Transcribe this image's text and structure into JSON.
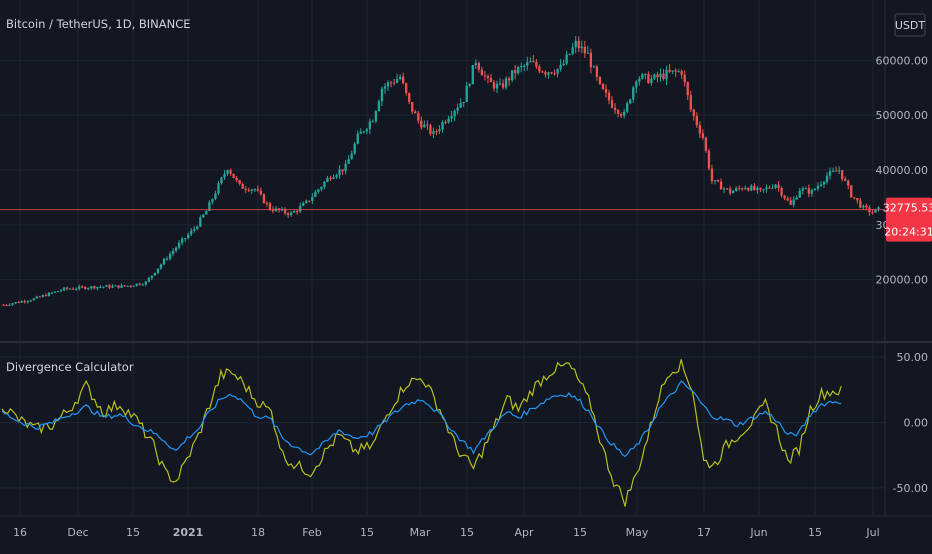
{
  "chart_title": "Bitcoin / TetherUS, 1D, BINANCE",
  "currency": "USDT",
  "last_price_label": "32775.53",
  "countdown_label": "20:24:31",
  "indicator_title": "Divergence Calculator",
  "colors": {
    "background": "#131722",
    "up": "#26a69a",
    "down": "#ef5350",
    "indicator_fast": "#b9bf1f",
    "indicator_slow": "#2196f3",
    "price_line": "#ef5350"
  },
  "chart_data": [
    {
      "type": "candlestick",
      "title": "Bitcoin / TetherUS, 1D, BINANCE",
      "ylim": [
        9000,
        71000
      ],
      "y_ticks": [
        {
          "value": 20000,
          "label": "20000.00"
        },
        {
          "value": 30000,
          "label": "30000.00"
        },
        {
          "value": 40000,
          "label": "40000.00"
        },
        {
          "value": 50000,
          "label": "50000.00"
        },
        {
          "value": 60000,
          "label": "60000.00"
        }
      ],
      "x_ticks": [
        "16",
        "Dec",
        "15",
        "2021",
        "18",
        "Feb",
        "15",
        "Mar",
        "15",
        "Apr",
        "15",
        "May",
        "17",
        "Jun",
        "15",
        "Jul"
      ],
      "last_price": 32775.53,
      "anchors": [
        [
          0,
          15400
        ],
        [
          10,
          16500
        ],
        [
          20,
          18300
        ],
        [
          30,
          18700
        ],
        [
          40,
          18800
        ],
        [
          47,
          19500
        ],
        [
          53,
          23500
        ],
        [
          58,
          26500
        ],
        [
          63,
          29300
        ],
        [
          67,
          32500
        ],
        [
          70,
          36000
        ],
        [
          74,
          40500
        ],
        [
          78,
          37000
        ],
        [
          83,
          36500
        ],
        [
          88,
          33000
        ],
        [
          95,
          32000
        ],
        [
          100,
          34000
        ],
        [
          108,
          39000
        ],
        [
          113,
          40500
        ],
        [
          117,
          46000
        ],
        [
          122,
          49500
        ],
        [
          125,
          55000
        ],
        [
          131,
          57000
        ],
        [
          134,
          52000
        ],
        [
          137,
          49000
        ],
        [
          142,
          46500
        ],
        [
          147,
          50000
        ],
        [
          152,
          53000
        ],
        [
          156,
          60000
        ],
        [
          160,
          56000
        ],
        [
          164,
          55000
        ],
        [
          169,
          58000
        ],
        [
          174,
          59500
        ],
        [
          179,
          58000
        ],
        [
          184,
          58500
        ],
        [
          189,
          63000
        ],
        [
          193,
          61000
        ],
        [
          197,
          55000
        ],
        [
          201,
          52000
        ],
        [
          205,
          50000
        ],
        [
          209,
          57000
        ],
        [
          214,
          56500
        ],
        [
          219,
          57500
        ],
        [
          224,
          58000
        ],
        [
          227,
          51000
        ],
        [
          231,
          46000
        ],
        [
          234,
          38000
        ],
        [
          237,
          37000
        ],
        [
          240,
          36000
        ],
        [
          245,
          37000
        ],
        [
          250,
          36000
        ],
        [
          255,
          37500
        ],
        [
          260,
          33500
        ],
        [
          263,
          36500
        ],
        [
          267,
          36000
        ],
        [
          272,
          39000
        ],
        [
          276,
          40000
        ],
        [
          280,
          35500
        ],
        [
          284,
          33000
        ],
        [
          287,
          32300
        ],
        [
          289,
          32770
        ]
      ]
    },
    {
      "type": "line",
      "title": "Divergence Calculator",
      "ylim": [
        -70,
        60
      ],
      "y_ticks": [
        {
          "value": 50,
          "label": "50.00"
        },
        {
          "value": 0,
          "label": "0.00"
        },
        {
          "value": -50,
          "label": "-50.00"
        }
      ],
      "series": [
        {
          "values_anchors": [
            [
              0,
              14
            ],
            [
              6,
              2
            ],
            [
              12,
              -5
            ],
            [
              18,
              -2
            ],
            [
              24,
              10
            ],
            [
              30,
              28
            ],
            [
              36,
              8
            ],
            [
              42,
              14
            ],
            [
              48,
              2
            ],
            [
              54,
              -18
            ],
            [
              58,
              -38
            ],
            [
              62,
              -45
            ],
            [
              66,
              -28
            ],
            [
              70,
              -10
            ],
            [
              74,
              14
            ],
            [
              78,
              36
            ],
            [
              82,
              38
            ],
            [
              86,
              30
            ],
            [
              90,
              18
            ],
            [
              96,
              8
            ],
            [
              100,
              -25
            ],
            [
              104,
              -32
            ],
            [
              110,
              -38
            ],
            [
              116,
              -20
            ],
            [
              120,
              -10
            ],
            [
              126,
              -22
            ],
            [
              132,
              -18
            ],
            [
              138,
              10
            ],
            [
              144,
              30
            ],
            [
              150,
              34
            ],
            [
              156,
              10
            ],
            [
              162,
              -20
            ],
            [
              168,
              -35
            ],
            [
              174,
              -10
            ],
            [
              180,
              18
            ],
            [
              184,
              10
            ],
            [
              190,
              28
            ],
            [
              196,
              40
            ],
            [
              202,
              44
            ],
            [
              206,
              30
            ],
            [
              210,
              12
            ],
            [
              214,
              -20
            ],
            [
              218,
              -45
            ],
            [
              222,
              -60
            ],
            [
              226,
              -40
            ],
            [
              230,
              -12
            ],
            [
              234,
              20
            ],
            [
              238,
              40
            ],
            [
              242,
              44
            ],
            [
              246,
              26
            ],
            [
              250,
              -30
            ],
            [
              254,
              -32
            ],
            [
              258,
              -18
            ],
            [
              262,
              -10
            ],
            [
              268,
              2
            ],
            [
              272,
              14
            ],
            [
              276,
              -5
            ],
            [
              280,
              -30
            ],
            [
              284,
              -20
            ],
            [
              288,
              10
            ],
            [
              292,
              22
            ],
            [
              296,
              24
            ]
          ]
        },
        {
          "values_anchors": [
            [
              0,
              8
            ],
            [
              6,
              1
            ],
            [
              12,
              -4
            ],
            [
              18,
              0
            ],
            [
              24,
              6
            ],
            [
              30,
              12
            ],
            [
              36,
              4
            ],
            [
              42,
              6
            ],
            [
              48,
              -2
            ],
            [
              54,
              -8
            ],
            [
              58,
              -14
            ],
            [
              62,
              -22
            ],
            [
              66,
              -12
            ],
            [
              70,
              -5
            ],
            [
              74,
              8
            ],
            [
              78,
              18
            ],
            [
              82,
              22
            ],
            [
              86,
              16
            ],
            [
              90,
              6
            ],
            [
              96,
              2
            ],
            [
              100,
              -12
            ],
            [
              104,
              -18
            ],
            [
              110,
              -24
            ],
            [
              116,
              -14
            ],
            [
              120,
              -6
            ],
            [
              126,
              -12
            ],
            [
              132,
              -8
            ],
            [
              138,
              4
            ],
            [
              144,
              14
            ],
            [
              150,
              18
            ],
            [
              156,
              6
            ],
            [
              162,
              -10
            ],
            [
              168,
              -22
            ],
            [
              174,
              -6
            ],
            [
              180,
              8
            ],
            [
              184,
              4
            ],
            [
              190,
              12
            ],
            [
              196,
              20
            ],
            [
              202,
              22
            ],
            [
              206,
              16
            ],
            [
              210,
              6
            ],
            [
              214,
              -8
            ],
            [
              218,
              -18
            ],
            [
              222,
              -26
            ],
            [
              226,
              -18
            ],
            [
              230,
              -6
            ],
            [
              234,
              10
            ],
            [
              238,
              20
            ],
            [
              242,
              30
            ],
            [
              246,
              24
            ],
            [
              250,
              12
            ],
            [
              254,
              4
            ],
            [
              258,
              2
            ],
            [
              262,
              -2
            ],
            [
              268,
              4
            ],
            [
              272,
              8
            ],
            [
              276,
              2
            ],
            [
              280,
              -10
            ],
            [
              284,
              -8
            ],
            [
              288,
              6
            ],
            [
              292,
              14
            ],
            [
              296,
              16
            ]
          ]
        }
      ]
    }
  ]
}
